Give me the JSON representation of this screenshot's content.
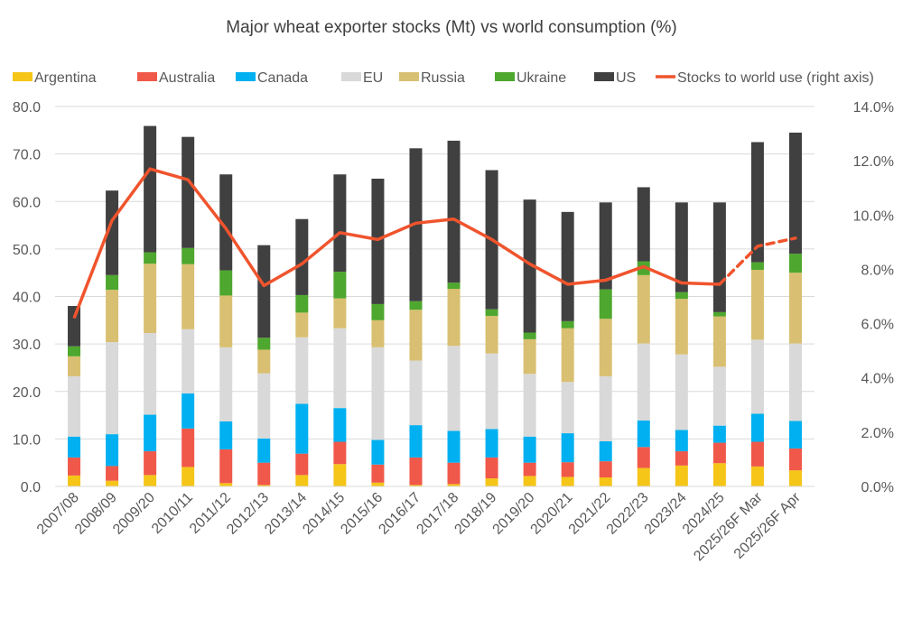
{
  "chart_data": {
    "type": "bar",
    "stacked": true,
    "title": "Major wheat exporter stocks (Mt) vs world consumption (%)",
    "xlabel": "",
    "ylabel": "",
    "ylim": [
      0,
      80
    ],
    "y_ticks": [
      "0.0",
      "10.0",
      "20.0",
      "30.0",
      "40.0",
      "50.0",
      "60.0",
      "70.0",
      "80.0"
    ],
    "y2lim": [
      0,
      14
    ],
    "y2_ticks": [
      "0.0%",
      "2.0%",
      "4.0%",
      "6.0%",
      "8.0%",
      "10.0%",
      "12.0%",
      "14.0%"
    ],
    "grid": true,
    "legend_position": "top",
    "categories": [
      "2007/08",
      "2008/09",
      "2009/20",
      "2010/11",
      "2011/12",
      "2012/13",
      "2013/14",
      "2014/15",
      "2015/16",
      "2016/17",
      "2017/18",
      "2018/19",
      "2019/20",
      "2020/21",
      "2021/22",
      "2022/23",
      "2023/24",
      "2024/25",
      "2025/26F Mar",
      "2025/26F Apr"
    ],
    "series": [
      {
        "name": "Argentina",
        "color": "#F5C518",
        "values": [
          2.3,
          1.2,
          2.4,
          4.1,
          0.7,
          0.3,
          2.4,
          4.7,
          0.8,
          0.3,
          0.5,
          1.7,
          2.2,
          2.0,
          1.9,
          3.9,
          4.4,
          4.9,
          4.2,
          3.4
        ]
      },
      {
        "name": "Australia",
        "color": "#F0584A",
        "values": [
          3.8,
          3.1,
          5.0,
          8.1,
          7.1,
          4.7,
          4.5,
          4.7,
          3.8,
          5.8,
          4.5,
          4.4,
          2.8,
          3.1,
          3.4,
          4.4,
          3.0,
          4.3,
          5.2,
          4.6
        ]
      },
      {
        "name": "Canada",
        "color": "#00B0F0",
        "values": [
          4.4,
          6.7,
          7.7,
          7.4,
          5.9,
          5.1,
          10.5,
          7.1,
          5.2,
          6.8,
          6.7,
          6.0,
          5.5,
          6.1,
          4.2,
          5.6,
          4.5,
          3.6,
          5.9,
          5.8
        ]
      },
      {
        "name": "EU",
        "color": "#D9D9D9",
        "values": [
          12.7,
          19.4,
          17.2,
          13.5,
          15.6,
          13.7,
          14.0,
          16.8,
          19.5,
          13.6,
          17.9,
          15.9,
          13.2,
          10.8,
          13.7,
          16.2,
          15.9,
          12.4,
          15.6,
          16.3
        ]
      },
      {
        "name": "Russia",
        "color": "#D9BF71",
        "values": [
          4.2,
          11.0,
          14.6,
          13.7,
          10.9,
          5.0,
          5.2,
          6.3,
          5.7,
          10.7,
          12.0,
          7.9,
          7.3,
          11.3,
          12.1,
          14.4,
          11.7,
          10.6,
          14.7,
          14.9
        ]
      },
      {
        "name": "Ukraine",
        "color": "#4EA72E",
        "values": [
          2.1,
          3.1,
          2.4,
          3.4,
          5.3,
          2.5,
          3.7,
          5.6,
          3.4,
          1.8,
          1.3,
          1.4,
          1.4,
          1.5,
          6.2,
          2.9,
          1.4,
          0.9,
          1.6,
          4.0
        ]
      },
      {
        "name": "US",
        "color": "#404040",
        "values": [
          8.5,
          17.8,
          26.6,
          23.4,
          20.2,
          19.5,
          16.0,
          20.5,
          26.4,
          32.2,
          29.9,
          29.3,
          28.0,
          23.0,
          18.3,
          15.6,
          18.9,
          23.1,
          25.3,
          25.5
        ]
      }
    ],
    "line": {
      "name": "Stocks to world use (right axis)",
      "color": "#F0542D",
      "axis": "right",
      "unit": "%",
      "values": [
        6.2,
        9.8,
        11.7,
        11.3,
        9.5,
        7.4,
        8.2,
        9.35,
        9.1,
        9.7,
        9.85,
        9.1,
        8.2,
        7.45,
        7.6,
        8.1,
        7.5,
        7.45,
        8.85,
        9.15
      ],
      "dashed_from": "2024/25"
    }
  }
}
